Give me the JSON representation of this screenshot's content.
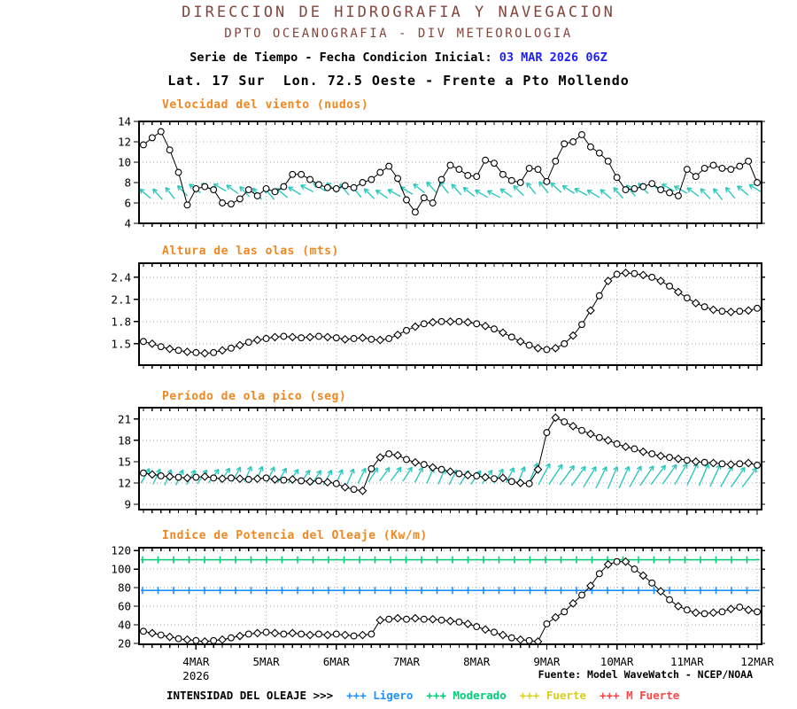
{
  "header": {
    "line1": "DIRECCION DE HIDROGRAFIA Y NAVEGACION",
    "line2": "DPTO OCEANOGRAFIA - DIV METEOROLOGIA",
    "line3_label": "Serie de Tiempo - Fecha Condicion Inicial: ",
    "line3_value": "03 MAR 2026 06Z",
    "line4": "Lat. 17 Sur  Lon. 72.5 Oeste - Frente a Pto Mollendo"
  },
  "footer": {
    "source": "Fuente: Model WaveWatch - NCEP/NOAA"
  },
  "legend": {
    "label": "INTENSIDAD DEL OLEAJE >>>",
    "items": [
      {
        "label": "+++ Ligero",
        "color": "#1e90ff"
      },
      {
        "label": "+++ Moderado",
        "color": "#00cc77"
      },
      {
        "label": "+++ Fuerte",
        "color": "#d9cf1d"
      },
      {
        "label": "+++ M Fuerte",
        "color": "#ff4343"
      }
    ]
  },
  "colors": {
    "header_maroon": "#82463c",
    "date_blue": "#1d1dff",
    "title_orange": "#ef8722",
    "barb_cyan": "#2cc8be",
    "grid_gray": "#aaaaaa",
    "line_black": "#000000",
    "threshold_moderate_green": "#00cc77",
    "threshold_light_blue": "#1e90ff"
  },
  "x_axis": {
    "start": "03 MAR 2026 06Z",
    "step_hours": 3,
    "n_points": 71,
    "year": "2026",
    "year_t": 6,
    "days": [
      {
        "t": 6,
        "label": "4MAR"
      },
      {
        "t": 14,
        "label": "5MAR"
      },
      {
        "t": 22,
        "label": "6MAR"
      },
      {
        "t": 30,
        "label": "7MAR"
      },
      {
        "t": 38,
        "label": "8MAR"
      },
      {
        "t": 46,
        "label": "9MAR"
      },
      {
        "t": 54,
        "label": "10MAR"
      },
      {
        "t": 62,
        "label": "11MAR"
      },
      {
        "t": 70,
        "label": "12MAR"
      }
    ]
  },
  "chart_data": [
    {
      "type": "line",
      "title": "Velocidad del viento (nudos)",
      "ylabel": "nudos",
      "ylim": [
        4,
        14
      ],
      "yticks": [
        {
          "v": 4,
          "label": "4"
        },
        {
          "v": 6,
          "label": "6"
        },
        {
          "v": 8,
          "label": "8"
        },
        {
          "v": 10,
          "label": "10"
        },
        {
          "v": 12,
          "label": "12"
        },
        {
          "v": 14,
          "label": "14"
        }
      ],
      "marker": "circle",
      "barbs": {
        "direction": "up-left",
        "center_value": 7.2
      },
      "values": [
        11.7,
        12.4,
        13.0,
        11.2,
        9.0,
        5.8,
        7.4,
        7.6,
        7.3,
        6.0,
        5.9,
        6.4,
        7.3,
        6.7,
        7.4,
        7.1,
        7.6,
        8.8,
        8.8,
        8.3,
        7.8,
        7.5,
        7.4,
        7.7,
        7.5,
        8.0,
        8.3,
        9.0,
        9.6,
        8.4,
        6.3,
        5.1,
        6.5,
        6.0,
        8.3,
        9.7,
        9.3,
        8.7,
        8.6,
        10.2,
        9.9,
        8.8,
        8.2,
        8.0,
        9.4,
        9.3,
        8.1,
        10.1,
        11.8,
        12.0,
        12.7,
        11.5,
        10.9,
        10.1,
        8.5,
        7.3,
        7.4,
        7.6,
        7.9,
        7.3,
        7.0,
        6.7,
        9.3,
        8.6,
        9.4,
        9.7,
        9.4,
        9.3,
        9.6,
        10.1,
        8.0
      ]
    },
    {
      "type": "line",
      "title": "Altura de las olas (mts)",
      "ylabel": "mts",
      "ylim": [
        1.21,
        2.59
      ],
      "yticks": [
        {
          "v": 1.5,
          "label": "1.5"
        },
        {
          "v": 1.8,
          "label": "1.8"
        },
        {
          "v": 2.1,
          "label": "2.1"
        },
        {
          "v": 2.4,
          "label": "2.4"
        }
      ],
      "marker": "alternate",
      "barbs": null,
      "values": [
        1.53,
        1.5,
        1.46,
        1.43,
        1.41,
        1.39,
        1.38,
        1.37,
        1.38,
        1.41,
        1.44,
        1.48,
        1.52,
        1.55,
        1.57,
        1.59,
        1.6,
        1.59,
        1.58,
        1.59,
        1.6,
        1.59,
        1.58,
        1.56,
        1.57,
        1.58,
        1.56,
        1.55,
        1.57,
        1.62,
        1.68,
        1.73,
        1.77,
        1.79,
        1.8,
        1.8,
        1.8,
        1.79,
        1.77,
        1.74,
        1.7,
        1.65,
        1.59,
        1.53,
        1.48,
        1.44,
        1.42,
        1.44,
        1.5,
        1.61,
        1.76,
        1.95,
        2.15,
        2.35,
        2.44,
        2.46,
        2.45,
        2.43,
        2.4,
        2.35,
        2.28,
        2.2,
        2.12,
        2.05,
        2.0,
        1.96,
        1.94,
        1.93,
        1.94,
        1.95,
        1.98
      ]
    },
    {
      "type": "line",
      "title": "Período de ola pico (seg)",
      "ylabel": "seg",
      "ylim": [
        8.25,
        22.6
      ],
      "yticks": [
        {
          "v": 9,
          "label": "9"
        },
        {
          "v": 12,
          "label": "12"
        },
        {
          "v": 15,
          "label": "15"
        },
        {
          "v": 18,
          "label": "18"
        },
        {
          "v": 21,
          "label": "21"
        }
      ],
      "marker": "alternate",
      "barbs": {
        "direction": "up-right",
        "center_value": 13.0
      },
      "values": [
        13.4,
        13.2,
        13.0,
        12.9,
        12.8,
        12.7,
        12.8,
        12.9,
        12.7,
        12.6,
        12.7,
        12.6,
        12.5,
        12.6,
        12.7,
        12.5,
        12.4,
        12.5,
        12.3,
        12.2,
        12.3,
        12.1,
        11.9,
        11.4,
        11.1,
        10.9,
        14.0,
        15.6,
        16.1,
        15.9,
        15.3,
        14.9,
        14.6,
        14.2,
        13.9,
        13.6,
        13.3,
        13.1,
        13.0,
        12.8,
        12.6,
        12.7,
        12.2,
        12.0,
        11.9,
        13.9,
        19.1,
        21.2,
        20.6,
        20.0,
        19.4,
        18.9,
        18.4,
        18.0,
        17.5,
        17.1,
        16.8,
        16.4,
        16.1,
        15.8,
        15.6,
        15.4,
        15.2,
        15.0,
        14.9,
        14.8,
        14.7,
        14.6,
        14.7,
        14.8,
        14.5
      ]
    },
    {
      "type": "line",
      "title": "Indice de Potencia del Oleaje (Kw/m)",
      "ylabel": "Kw/m",
      "ylim": [
        19,
        123
      ],
      "yticks": [
        {
          "v": 20,
          "label": "20"
        },
        {
          "v": 40,
          "label": "40"
        },
        {
          "v": 60,
          "label": "60"
        },
        {
          "v": 80,
          "label": "80"
        },
        {
          "v": 100,
          "label": "100"
        },
        {
          "v": 120,
          "label": "120"
        }
      ],
      "marker": "alternate",
      "barbs": null,
      "thresholds": [
        {
          "value": 110,
          "color": "#00cc77",
          "meaning": "Moderado"
        },
        {
          "value": 77,
          "color": "#1e90ff",
          "meaning": "Ligero"
        }
      ],
      "values": [
        33,
        31,
        29,
        27,
        25,
        24,
        23,
        22,
        23,
        24,
        26,
        28,
        30,
        31,
        32,
        31,
        30,
        31,
        30,
        29,
        30,
        29,
        30,
        29,
        28,
        29,
        30,
        45,
        46,
        47,
        46,
        47,
        46,
        46,
        45,
        44,
        43,
        41,
        38,
        35,
        32,
        29,
        26,
        24,
        23,
        22,
        41,
        48,
        54,
        63,
        72,
        82,
        95,
        105,
        108,
        108,
        100,
        93,
        85,
        76,
        67,
        60,
        56,
        53,
        52,
        53,
        54,
        57,
        59,
        56,
        54
      ]
    }
  ]
}
